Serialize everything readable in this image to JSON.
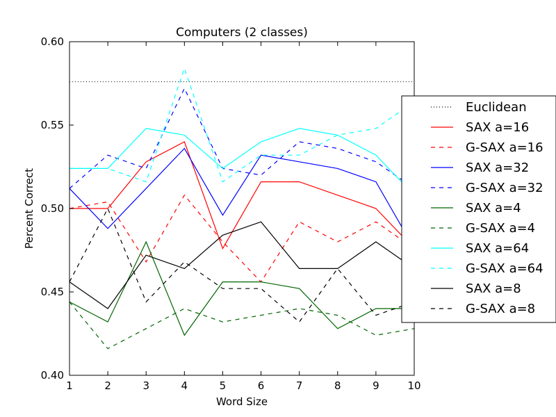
{
  "chart_data": {
    "type": "line",
    "title": "Computers (2 classes)",
    "xlabel": "Word Size",
    "ylabel": "Percent Correct",
    "xlim": [
      1,
      10
    ],
    "ylim": [
      0.4,
      0.6
    ],
    "xticks": [
      1,
      2,
      3,
      4,
      5,
      6,
      7,
      8,
      9,
      10
    ],
    "yticks": [
      "0.40",
      "0.45",
      "0.50",
      "0.55",
      "0.60"
    ],
    "x": [
      1,
      2,
      3,
      4,
      5,
      6,
      7,
      8,
      9,
      10
    ],
    "grid": false,
    "legend_position": "right",
    "baseline": {
      "name": "Euclidean",
      "value": 0.576,
      "color": "#000000",
      "style": "dotted"
    },
    "series": [
      {
        "name": "SAX a=16",
        "color": "#ff0000",
        "style": "solid",
        "values": [
          0.5,
          0.5,
          0.528,
          0.54,
          0.476,
          0.516,
          0.516,
          0.508,
          0.5,
          0.476
        ]
      },
      {
        "name": "G-SAX a=16",
        "color": "#ff0000",
        "style": "dashed",
        "values": [
          0.5,
          0.504,
          0.468,
          0.508,
          0.48,
          0.456,
          0.492,
          0.48,
          0.492,
          0.476
        ]
      },
      {
        "name": "SAX a=32",
        "color": "#0000ff",
        "style": "solid",
        "values": [
          0.512,
          0.488,
          0.512,
          0.536,
          0.496,
          0.532,
          0.528,
          0.524,
          0.516,
          0.476
        ]
      },
      {
        "name": "G-SAX a=32",
        "color": "#0000ff",
        "style": "dashed",
        "values": [
          0.512,
          0.532,
          0.524,
          0.572,
          0.524,
          0.52,
          0.54,
          0.536,
          0.528,
          0.512
        ]
      },
      {
        "name": "SAX a=4",
        "color": "#006400",
        "style": "solid",
        "values": [
          0.444,
          0.432,
          0.48,
          0.424,
          0.456,
          0.456,
          0.452,
          0.428,
          0.44,
          0.44
        ]
      },
      {
        "name": "G-SAX a=4",
        "color": "#006400",
        "style": "dashed",
        "values": [
          0.444,
          0.416,
          0.428,
          0.44,
          0.432,
          0.436,
          0.44,
          0.436,
          0.424,
          0.428
        ]
      },
      {
        "name": "SAX a=64",
        "color": "#00ffff",
        "style": "solid",
        "values": [
          0.524,
          0.524,
          0.548,
          0.544,
          0.524,
          0.54,
          0.548,
          0.544,
          0.532,
          0.508
        ]
      },
      {
        "name": "G-SAX a=64",
        "color": "#00ffff",
        "style": "dashed",
        "values": [
          0.524,
          0.524,
          0.516,
          0.584,
          0.516,
          0.532,
          0.532,
          0.544,
          0.548,
          0.564
        ]
      },
      {
        "name": "SAX a=8",
        "color": "#000000",
        "style": "solid",
        "values": [
          0.456,
          0.44,
          0.472,
          0.464,
          0.484,
          0.492,
          0.464,
          0.464,
          0.48,
          0.464
        ]
      },
      {
        "name": "G-SAX a=8",
        "color": "#000000",
        "style": "dashed",
        "values": [
          0.456,
          0.5,
          0.444,
          0.468,
          0.452,
          0.452,
          0.432,
          0.464,
          0.436,
          0.444
        ]
      }
    ]
  }
}
